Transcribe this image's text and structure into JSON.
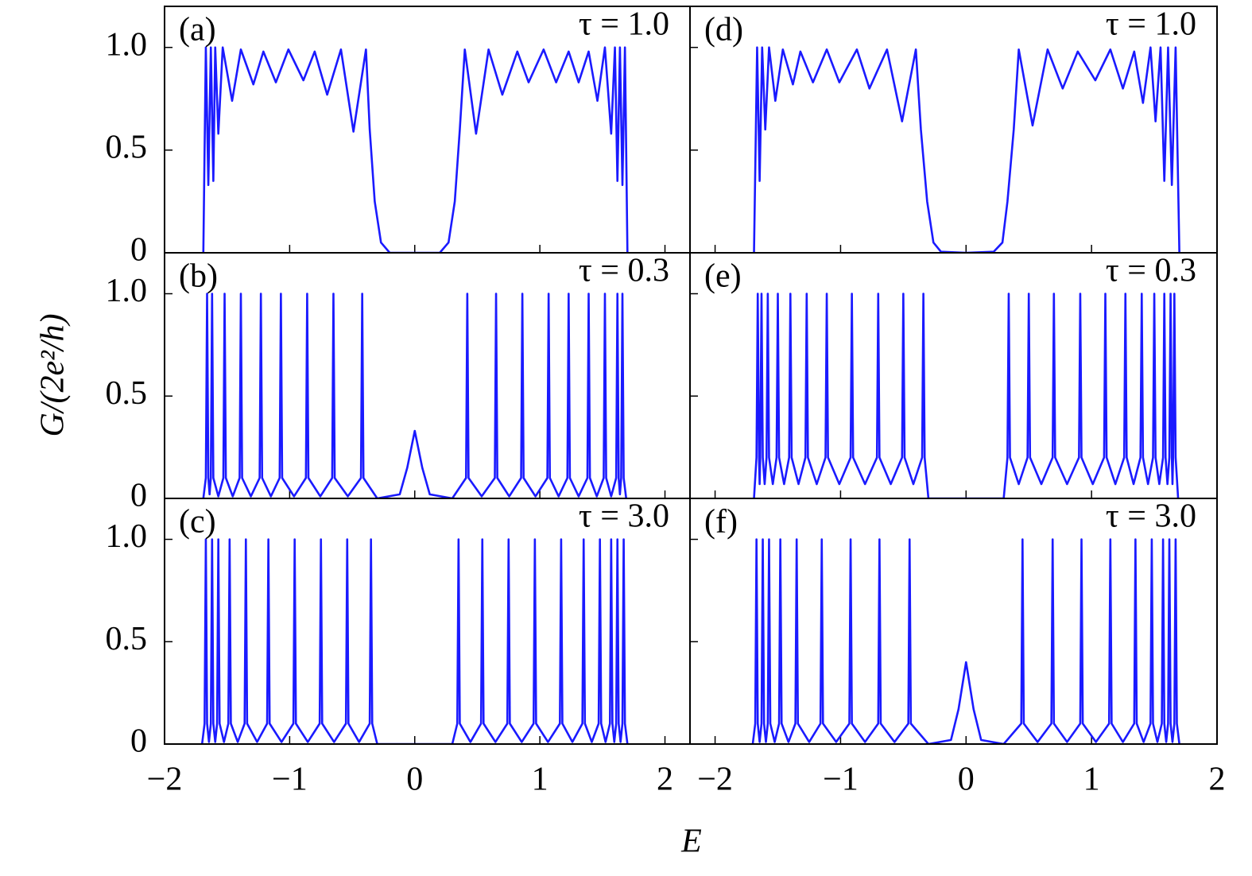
{
  "ylabel": "G/(2e²/h)",
  "xlabel": "E",
  "chart_data": [
    {
      "type": "line",
      "label": "(a)",
      "annotation": "τ = 1.0",
      "xlim": [
        -2,
        2.2
      ],
      "ylim": [
        0,
        1.2
      ],
      "xticks": [
        -2,
        -1,
        0,
        1,
        2
      ],
      "yticks": [
        0,
        0.5,
        {
          "value": 1,
          "label": "1.0"
        }
      ],
      "x": [
        -1.69,
        -1.67,
        -1.65,
        -1.63,
        -1.61,
        -1.595,
        -1.57,
        -1.535,
        -1.46,
        -1.39,
        -1.29,
        -1.21,
        -1.11,
        -1.01,
        -0.89,
        -0.8,
        -0.7,
        -0.59,
        -0.49,
        -0.39,
        -0.36,
        -0.32,
        -0.27,
        -0.2,
        0.2,
        0.27,
        0.32,
        0.36,
        0.4,
        0.49,
        0.59,
        0.7,
        0.82,
        0.91,
        1.03,
        1.13,
        1.23,
        1.31,
        1.39,
        1.46,
        1.52,
        1.57,
        1.6,
        1.62,
        1.64,
        1.66,
        1.68,
        1.7
      ],
      "series": [
        {
          "color": "#1a1aff",
          "values": [
            0,
            1,
            0.33,
            1,
            0.35,
            1,
            0.58,
            1,
            0.74,
            0.99,
            0.82,
            0.98,
            0.83,
            0.99,
            0.84,
            0.98,
            0.77,
            0.99,
            0.59,
            0.99,
            0.6,
            0.25,
            0.05,
            0,
            0,
            0.05,
            0.25,
            0.6,
            0.99,
            0.58,
            0.99,
            0.77,
            0.98,
            0.83,
            0.99,
            0.83,
            0.98,
            0.83,
            0.98,
            0.74,
            1,
            0.58,
            1,
            0.35,
            1,
            0.33,
            1,
            0
          ]
        }
      ]
    },
    {
      "type": "line",
      "label": "(b)",
      "annotation": "τ = 0.3",
      "xlim": [
        -2,
        2.2
      ],
      "ylim": [
        0,
        1.2
      ],
      "xticks": [
        -2,
        -1,
        0,
        1,
        2
      ],
      "yticks": [
        0,
        0.5,
        {
          "value": 1,
          "label": "1.0"
        }
      ],
      "x": [
        -1.69,
        -1.67,
        -1.66,
        -1.65,
        -1.64,
        -1.63,
        -1.62,
        -1.61,
        -1.57,
        -1.53,
        -1.52,
        -1.51,
        -1.455,
        -1.4,
        -1.39,
        -1.38,
        -1.31,
        -1.24,
        -1.23,
        -1.22,
        -1.15,
        -1.08,
        -1.07,
        -1.06,
        -0.965,
        -0.87,
        -0.86,
        -0.85,
        -0.755,
        -0.66,
        -0.65,
        -0.64,
        -0.535,
        -0.43,
        -0.42,
        -0.41,
        -0.3,
        -0.12,
        -0.06,
        0,
        0.06,
        0.12,
        0.3,
        0.41,
        0.42,
        0.43,
        0.535,
        0.64,
        0.65,
        0.66,
        0.755,
        0.85,
        0.86,
        0.87,
        0.965,
        1.06,
        1.07,
        1.08,
        1.15,
        1.22,
        1.23,
        1.24,
        1.31,
        1.38,
        1.39,
        1.4,
        1.455,
        1.51,
        1.52,
        1.53,
        1.57,
        1.61,
        1.62,
        1.63,
        1.64,
        1.65,
        1.66,
        1.67,
        1.69
      ],
      "series": [
        {
          "color": "#1a1aff",
          "values": [
            0,
            0.1,
            1,
            0.1,
            0.02,
            0.1,
            1,
            0.1,
            0.01,
            0.1,
            1,
            0.1,
            0.01,
            0.1,
            1,
            0.1,
            0.01,
            0.1,
            1,
            0.1,
            0.01,
            0.1,
            1,
            0.1,
            0.01,
            0.1,
            1,
            0.1,
            0.01,
            0.1,
            1,
            0.1,
            0.01,
            0.1,
            1,
            0.1,
            0,
            0.02,
            0.15,
            0.33,
            0.15,
            0.02,
            0,
            0.1,
            1,
            0.1,
            0.01,
            0.1,
            1,
            0.1,
            0.01,
            0.1,
            1,
            0.1,
            0.01,
            0.1,
            1,
            0.1,
            0.01,
            0.1,
            1,
            0.1,
            0.01,
            0.1,
            1,
            0.1,
            0.01,
            0.1,
            1,
            0.1,
            0.01,
            0.1,
            1,
            0.1,
            0.02,
            0.1,
            1,
            0.1,
            0
          ]
        }
      ]
    },
    {
      "type": "line",
      "label": "(c)",
      "annotation": "τ = 3.0",
      "xlim": [
        -2,
        2.2
      ],
      "ylim": [
        0,
        1.2
      ],
      "xticks": [
        {
          "value": -2,
          "label": "−2"
        },
        {
          "value": -1,
          "label": "−1"
        },
        0,
        1,
        2
      ],
      "yticks": [
        0,
        0.5,
        {
          "value": 1,
          "label": "1.0"
        }
      ],
      "x": [
        -1.7,
        -1.68,
        -1.67,
        -1.66,
        -1.645,
        -1.63,
        -1.62,
        -1.61,
        -1.595,
        -1.58,
        -1.57,
        -1.56,
        -1.525,
        -1.49,
        -1.48,
        -1.47,
        -1.415,
        -1.36,
        -1.35,
        -1.34,
        -1.26,
        -1.18,
        -1.17,
        -1.16,
        -1.065,
        -0.97,
        -0.96,
        -0.95,
        -0.855,
        -0.76,
        -0.75,
        -0.74,
        -0.645,
        -0.55,
        -0.54,
        -0.53,
        -0.445,
        -0.36,
        -0.35,
        -0.34,
        -0.3,
        0.3,
        0.34,
        0.35,
        0.36,
        0.445,
        0.53,
        0.54,
        0.55,
        0.645,
        0.74,
        0.75,
        0.76,
        0.855,
        0.95,
        0.96,
        0.97,
        1.065,
        1.16,
        1.17,
        1.18,
        1.26,
        1.34,
        1.35,
        1.36,
        1.415,
        1.47,
        1.48,
        1.49,
        1.525,
        1.56,
        1.57,
        1.58,
        1.595,
        1.61,
        1.62,
        1.63,
        1.645,
        1.66,
        1.67,
        1.68,
        1.7
      ],
      "series": [
        {
          "color": "#1a1aff",
          "values": [
            0,
            0.1,
            1,
            0.1,
            0.01,
            0.1,
            1,
            0.1,
            0.01,
            0.1,
            1,
            0.1,
            0.01,
            0.1,
            1,
            0.1,
            0.01,
            0.1,
            1,
            0.1,
            0.01,
            0.1,
            1,
            0.1,
            0.01,
            0.1,
            1,
            0.1,
            0.01,
            0.1,
            1,
            0.1,
            0.01,
            0.1,
            1,
            0.1,
            0.01,
            0.1,
            1,
            0.1,
            0,
            0,
            0.1,
            1,
            0.1,
            0.01,
            0.1,
            1,
            0.1,
            0.01,
            0.1,
            1,
            0.1,
            0.01,
            0.1,
            1,
            0.1,
            0.01,
            0.1,
            1,
            0.1,
            0.01,
            0.1,
            1,
            0.1,
            0.01,
            0.1,
            1,
            0.1,
            0.01,
            0.1,
            1,
            0.1,
            0.01,
            0.1,
            1,
            0.1,
            0.01,
            0.1,
            1,
            0.1,
            0
          ]
        }
      ]
    },
    {
      "type": "line",
      "label": "(d)",
      "annotation": "τ = 1.0",
      "xlim": [
        -2.2,
        2
      ],
      "ylim": [
        0,
        1.2
      ],
      "xticks": [
        -2,
        -1,
        0,
        1,
        2
      ],
      "yticks": [
        0,
        0.5,
        1
      ],
      "x": [
        -1.69,
        -1.665,
        -1.645,
        -1.625,
        -1.6,
        -1.57,
        -1.52,
        -1.46,
        -1.38,
        -1.32,
        -1.22,
        -1.11,
        -1.01,
        -0.87,
        -0.77,
        -0.63,
        -0.51,
        -0.4,
        -0.36,
        -0.31,
        -0.26,
        -0.2,
        0,
        0.22,
        0.29,
        0.33,
        0.38,
        0.42,
        0.53,
        0.65,
        0.77,
        0.89,
        1.03,
        1.15,
        1.25,
        1.34,
        1.41,
        1.47,
        1.51,
        1.55,
        1.58,
        1.61,
        1.64,
        1.67,
        1.7
      ],
      "series": [
        {
          "color": "#1a1aff",
          "values": [
            0,
            1,
            0.35,
            1,
            0.6,
            1,
            0.74,
            0.99,
            0.82,
            0.98,
            0.83,
            0.99,
            0.83,
            0.99,
            0.8,
            0.99,
            0.64,
            0.99,
            0.6,
            0.25,
            0.05,
            0.005,
            0,
            0.005,
            0.05,
            0.25,
            0.6,
            0.99,
            0.62,
            0.99,
            0.8,
            0.98,
            0.84,
            0.99,
            0.8,
            0.98,
            0.73,
            1,
            0.64,
            1,
            0.35,
            1,
            0.33,
            1,
            0
          ]
        }
      ]
    },
    {
      "type": "line",
      "label": "(e)",
      "annotation": "τ = 0.3",
      "xlim": [
        -2.2,
        2
      ],
      "ylim": [
        0,
        1.2
      ],
      "xticks": [
        -2,
        -1,
        0,
        1,
        2
      ],
      "yticks": [
        0,
        0.5,
        1
      ],
      "x": [
        -1.69,
        -1.67,
        -1.66,
        -1.65,
        -1.645,
        -1.64,
        -1.63,
        -1.62,
        -1.605,
        -1.59,
        -1.58,
        -1.57,
        -1.54,
        -1.51,
        -1.5,
        -1.49,
        -1.45,
        -1.41,
        -1.4,
        -1.39,
        -1.335,
        -1.28,
        -1.27,
        -1.26,
        -1.19,
        -1.12,
        -1.11,
        -1.1,
        -1.01,
        -0.92,
        -0.91,
        -0.9,
        -0.805,
        -0.71,
        -0.7,
        -0.69,
        -0.6,
        -0.51,
        -0.5,
        -0.49,
        -0.42,
        -0.35,
        -0.34,
        -0.33,
        -0.3,
        0.3,
        0.33,
        0.34,
        0.35,
        0.42,
        0.49,
        0.5,
        0.51,
        0.6,
        0.69,
        0.7,
        0.71,
        0.805,
        0.9,
        0.91,
        0.92,
        1.01,
        1.1,
        1.11,
        1.12,
        1.19,
        1.26,
        1.27,
        1.28,
        1.335,
        1.39,
        1.4,
        1.41,
        1.45,
        1.49,
        1.5,
        1.51,
        1.54,
        1.57,
        1.58,
        1.59,
        1.605,
        1.62,
        1.63,
        1.64,
        1.645,
        1.65,
        1.66,
        1.67,
        1.69
      ],
      "series": [
        {
          "color": "#1a1aff",
          "values": [
            0,
            0.2,
            1,
            0.2,
            0.07,
            0.2,
            1,
            0.2,
            0.07,
            0.2,
            1,
            0.2,
            0.07,
            0.2,
            1,
            0.2,
            0.07,
            0.2,
            1,
            0.2,
            0.07,
            0.2,
            1,
            0.2,
            0.07,
            0.2,
            1,
            0.2,
            0.07,
            0.2,
            1,
            0.2,
            0.07,
            0.2,
            1,
            0.2,
            0.07,
            0.2,
            1,
            0.2,
            0.07,
            0.2,
            1,
            0.2,
            0,
            0,
            0.2,
            1,
            0.2,
            0.07,
            0.2,
            1,
            0.2,
            0.07,
            0.2,
            1,
            0.2,
            0.07,
            0.2,
            1,
            0.2,
            0.07,
            0.2,
            1,
            0.2,
            0.07,
            0.2,
            1,
            0.2,
            0.07,
            0.2,
            1,
            0.2,
            0.07,
            0.2,
            1,
            0.2,
            0.07,
            0.2,
            1,
            0.2,
            0.07,
            0.2,
            1,
            0.2,
            0.07,
            0.2,
            1,
            0.2,
            0
          ]
        }
      ]
    },
    {
      "type": "line",
      "label": "(f)",
      "annotation": "τ = 3.0",
      "xlim": [
        -2.2,
        2
      ],
      "ylim": [
        0,
        1.2
      ],
      "xticks": [
        {
          "value": -2,
          "label": "−2"
        },
        {
          "value": -1,
          "label": "−1"
        },
        0,
        1,
        2
      ],
      "yticks": [
        0,
        0.5,
        1
      ],
      "x": [
        -1.7,
        -1.68,
        -1.67,
        -1.66,
        -1.645,
        -1.63,
        -1.62,
        -1.61,
        -1.595,
        -1.58,
        -1.57,
        -1.56,
        -1.525,
        -1.49,
        -1.48,
        -1.47,
        -1.415,
        -1.36,
        -1.35,
        -1.34,
        -1.25,
        -1.16,
        -1.15,
        -1.14,
        -1.035,
        -0.93,
        -0.92,
        -0.91,
        -0.805,
        -0.7,
        -0.69,
        -0.68,
        -0.57,
        -0.46,
        -0.45,
        -0.44,
        -0.3,
        -0.12,
        -0.06,
        0,
        0.06,
        0.12,
        0.3,
        0.44,
        0.45,
        0.46,
        0.57,
        0.68,
        0.69,
        0.7,
        0.805,
        0.91,
        0.92,
        0.93,
        1.035,
        1.14,
        1.15,
        1.16,
        1.25,
        1.34,
        1.35,
        1.36,
        1.415,
        1.47,
        1.48,
        1.49,
        1.525,
        1.56,
        1.57,
        1.58,
        1.595,
        1.61,
        1.62,
        1.63,
        1.645,
        1.66,
        1.67,
        1.68,
        1.7
      ],
      "series": [
        {
          "color": "#1a1aff",
          "values": [
            0,
            0.1,
            1,
            0.1,
            0.01,
            0.1,
            1,
            0.1,
            0.01,
            0.1,
            1,
            0.1,
            0.01,
            0.1,
            1,
            0.1,
            0.01,
            0.1,
            1,
            0.1,
            0.01,
            0.1,
            1,
            0.1,
            0.01,
            0.1,
            1,
            0.1,
            0.01,
            0.1,
            1,
            0.1,
            0.01,
            0.1,
            1,
            0.1,
            0,
            0.02,
            0.17,
            0.4,
            0.17,
            0.02,
            0,
            0.1,
            1,
            0.1,
            0.01,
            0.1,
            1,
            0.1,
            0.01,
            0.1,
            1,
            0.1,
            0.01,
            0.1,
            1,
            0.1,
            0.01,
            0.1,
            1,
            0.1,
            0.01,
            0.1,
            1,
            0.1,
            0.01,
            0.1,
            1,
            0.1,
            0.01,
            0.1,
            1,
            0.1,
            0.01,
            0.1,
            1,
            0.1,
            0
          ]
        }
      ]
    }
  ]
}
